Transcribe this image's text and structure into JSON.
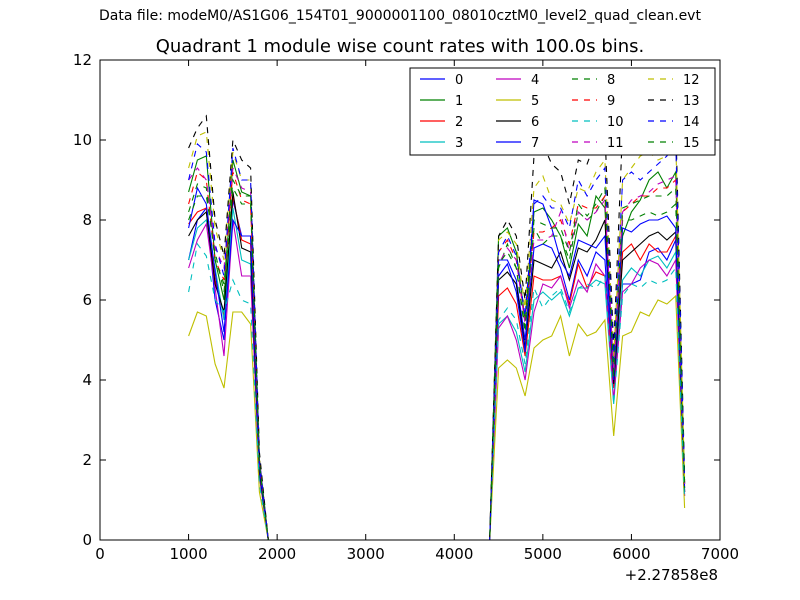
{
  "header": {
    "suptitle": "Data file: modeM0/AS1G06_154T01_9000001100_08010cztM0_level2_quad_clean.evt"
  },
  "chart_data": {
    "type": "line",
    "title": "Quadrant 1 module wise count rates with 100.0s bins.",
    "xlabel": "",
    "ylabel": "",
    "x_offset_label": "+2.27858e8",
    "xlim": [
      0,
      7000
    ],
    "ylim": [
      0,
      12
    ],
    "x_ticks": [
      0,
      1000,
      2000,
      3000,
      4000,
      5000,
      6000,
      7000
    ],
    "y_ticks": [
      0,
      2,
      4,
      6,
      8,
      10,
      12
    ],
    "grid": false,
    "legend_placement": "top-right",
    "legend_columns": 4,
    "x": [
      1000,
      1100,
      1200,
      1300,
      1400,
      1500,
      1600,
      1700,
      1800,
      1900,
      2000,
      2100,
      2200,
      2300,
      2400,
      2500,
      2600,
      2700,
      2800,
      2900,
      3000,
      3100,
      3200,
      3300,
      3400,
      3500,
      3600,
      3700,
      3800,
      3900,
      4000,
      4100,
      4200,
      4300,
      4400,
      4500,
      4600,
      4700,
      4800,
      4900,
      5000,
      5100,
      5200,
      5300,
      5400,
      5500,
      5600,
      5700,
      5800,
      5900,
      6000,
      6100,
      6200,
      6300,
      6400,
      6500,
      6600
    ],
    "series": [
      {
        "name": "0",
        "color": "#0000ff",
        "dash": "solid",
        "values": [
          7.0,
          8.0,
          8.3,
          6.0,
          5.0,
          8.5,
          7.6,
          7.6,
          1.8,
          0,
          0,
          0,
          0,
          0,
          0,
          0,
          0,
          0,
          0,
          0,
          0,
          0,
          0,
          0,
          0,
          0,
          0,
          0,
          0,
          0,
          0,
          0,
          0,
          0,
          0,
          7.0,
          7.0,
          6.5,
          5.0,
          7.3,
          7.4,
          7.3,
          6.8,
          6.0,
          7.0,
          6.6,
          7.2,
          7.0,
          3.8,
          6.4,
          6.4,
          6.5,
          7.2,
          7.3,
          7.0,
          7.5,
          1.2
        ]
      },
      {
        "name": "1",
        "color": "#008000",
        "dash": "solid",
        "values": [
          8.7,
          9.5,
          9.6,
          7.0,
          6.0,
          9.5,
          8.7,
          8.6,
          2.0,
          0,
          0,
          0,
          0,
          0,
          0,
          0,
          0,
          0,
          0,
          0,
          0,
          0,
          0,
          0,
          0,
          0,
          0,
          0,
          0,
          0,
          0,
          0,
          0,
          0,
          0,
          7.6,
          7.8,
          7.2,
          5.5,
          8.2,
          8.3,
          8.0,
          7.6,
          6.8,
          7.9,
          7.6,
          8.6,
          8.3,
          4.2,
          7.6,
          8.2,
          8.5,
          9.0,
          9.2,
          8.8,
          9.2,
          1.4
        ]
      },
      {
        "name": "2",
        "color": "#ff0000",
        "dash": "solid",
        "values": [
          7.9,
          8.2,
          8.3,
          6.5,
          5.6,
          8.6,
          7.5,
          7.4,
          1.8,
          0,
          0,
          0,
          0,
          0,
          0,
          0,
          0,
          0,
          0,
          0,
          0,
          0,
          0,
          0,
          0,
          0,
          0,
          0,
          0,
          0,
          0,
          0,
          0,
          0,
          0,
          6.1,
          6.3,
          5.9,
          4.6,
          6.6,
          6.5,
          6.5,
          6.6,
          5.9,
          6.9,
          6.3,
          6.7,
          6.6,
          3.8,
          7.2,
          7.4,
          7.0,
          7.4,
          7.2,
          7.2,
          7.6,
          1.2
        ]
      },
      {
        "name": "3",
        "color": "#00bfbf",
        "dash": "solid",
        "values": [
          7.0,
          7.8,
          8.0,
          6.8,
          5.5,
          8.3,
          7.0,
          6.9,
          1.6,
          0,
          0,
          0,
          0,
          0,
          0,
          0,
          0,
          0,
          0,
          0,
          0,
          0,
          0,
          0,
          0,
          0,
          0,
          0,
          0,
          0,
          0,
          0,
          0,
          0,
          0,
          5.4,
          5.6,
          5.2,
          4.2,
          6.0,
          6.2,
          6.0,
          6.2,
          5.6,
          6.3,
          6.3,
          6.5,
          6.4,
          3.4,
          6.5,
          6.8,
          6.6,
          7.0,
          7.1,
          6.8,
          7.2,
          1.1
        ]
      },
      {
        "name": "4",
        "color": "#bf00bf",
        "dash": "solid",
        "values": [
          6.8,
          7.5,
          7.9,
          6.3,
          4.6,
          8.0,
          6.6,
          6.6,
          1.6,
          0,
          0,
          0,
          0,
          0,
          0,
          0,
          0,
          0,
          0,
          0,
          0,
          0,
          0,
          0,
          0,
          0,
          0,
          0,
          0,
          0,
          0,
          0,
          0,
          0,
          0,
          5.3,
          5.6,
          5.0,
          4.0,
          5.7,
          6.4,
          6.3,
          6.6,
          5.8,
          6.5,
          6.2,
          6.9,
          6.6,
          3.5,
          6.2,
          6.4,
          6.8,
          7.0,
          6.9,
          6.6,
          7.0,
          1.1
        ]
      },
      {
        "name": "5",
        "color": "#bfbf00",
        "dash": "solid",
        "values": [
          5.1,
          5.7,
          5.6,
          4.4,
          3.8,
          5.7,
          5.7,
          5.4,
          1.2,
          0,
          0,
          0,
          0,
          0,
          0,
          0,
          0,
          0,
          0,
          0,
          0,
          0,
          0,
          0,
          0,
          0,
          0,
          0,
          0,
          0,
          0,
          0,
          0,
          0,
          0,
          4.3,
          4.5,
          4.3,
          3.6,
          4.8,
          5.0,
          5.1,
          5.6,
          4.6,
          5.4,
          5.1,
          5.2,
          5.5,
          2.6,
          5.1,
          5.2,
          5.7,
          5.6,
          6.0,
          5.9,
          6.1,
          0.8
        ]
      },
      {
        "name": "6",
        "color": "#000000",
        "dash": "solid",
        "values": [
          7.6,
          8.0,
          8.2,
          6.4,
          5.7,
          8.7,
          7.3,
          7.2,
          1.7,
          0,
          0,
          0,
          0,
          0,
          0,
          0,
          0,
          0,
          0,
          0,
          0,
          0,
          0,
          0,
          0,
          0,
          0,
          0,
          0,
          0,
          0,
          0,
          0,
          0,
          0,
          6.5,
          6.7,
          6.4,
          4.8,
          7.0,
          6.9,
          6.8,
          7.2,
          6.5,
          7.3,
          7.2,
          7.5,
          8.0,
          3.9,
          7.0,
          7.2,
          7.4,
          7.6,
          7.7,
          7.5,
          7.7,
          1.2
        ]
      },
      {
        "name": "7",
        "color": "#0000ff",
        "dash": "solid",
        "values": [
          7.8,
          8.8,
          8.4,
          6.7,
          5.2,
          8.0,
          7.6,
          7.6,
          1.8,
          0,
          0,
          0,
          0,
          0,
          0,
          0,
          0,
          0,
          0,
          0,
          0,
          0,
          0,
          0,
          0,
          0,
          0,
          0,
          0,
          0,
          0,
          0,
          0,
          0,
          0,
          6.6,
          6.9,
          6.2,
          4.7,
          8.5,
          8.4,
          7.8,
          7.0,
          6.6,
          7.5,
          7.4,
          7.3,
          7.6,
          4.0,
          7.8,
          7.7,
          7.9,
          8.0,
          8.0,
          8.1,
          7.8,
          1.3
        ]
      },
      {
        "name": "8",
        "color": "#008000",
        "dash": "dashed",
        "values": [
          8.0,
          8.6,
          8.6,
          7.2,
          6.2,
          8.8,
          8.4,
          8.4,
          1.9,
          0,
          0,
          0,
          0,
          0,
          0,
          0,
          0,
          0,
          0,
          0,
          0,
          0,
          0,
          0,
          0,
          0,
          0,
          0,
          0,
          0,
          0,
          0,
          0,
          0,
          0,
          6.8,
          7.4,
          6.8,
          5.2,
          7.8,
          7.4,
          7.6,
          7.6,
          7.0,
          8.2,
          8.0,
          8.2,
          8.6,
          4.1,
          8.0,
          8.0,
          8.1,
          8.2,
          8.1,
          8.2,
          8.4,
          1.3
        ]
      },
      {
        "name": "9",
        "color": "#ff0000",
        "dash": "dashed",
        "values": [
          8.4,
          9.2,
          9.0,
          7.0,
          6.5,
          9.2,
          8.5,
          8.4,
          2.0,
          0,
          0,
          0,
          0,
          0,
          0,
          0,
          0,
          0,
          0,
          0,
          0,
          0,
          0,
          0,
          0,
          0,
          0,
          0,
          0,
          0,
          0,
          0,
          0,
          0,
          0,
          7.2,
          7.5,
          7.0,
          5.5,
          7.7,
          7.7,
          7.8,
          8.0,
          7.4,
          8.4,
          8.3,
          8.3,
          8.6,
          4.3,
          8.2,
          8.4,
          8.6,
          8.6,
          8.8,
          8.8,
          9.0,
          1.4
        ]
      },
      {
        "name": "10",
        "color": "#00bfbf",
        "dash": "dashed",
        "values": [
          6.2,
          7.4,
          7.1,
          6.0,
          5.7,
          6.5,
          6.0,
          5.9,
          1.4,
          0,
          0,
          0,
          0,
          0,
          0,
          0,
          0,
          0,
          0,
          0,
          0,
          0,
          0,
          0,
          0,
          0,
          0,
          0,
          0,
          0,
          0,
          0,
          0,
          0,
          0,
          5.5,
          5.8,
          5.5,
          4.4,
          6.3,
          5.8,
          6.1,
          6.3,
          5.7,
          6.3,
          6.4,
          6.3,
          6.6,
          3.4,
          6.1,
          6.4,
          6.3,
          6.5,
          6.4,
          6.5,
          6.8,
          1.0
        ]
      },
      {
        "name": "11",
        "color": "#bf00bf",
        "dash": "dashed",
        "values": [
          9.0,
          9.3,
          9.0,
          7.3,
          6.8,
          9.3,
          8.8,
          8.7,
          2.0,
          0,
          0,
          0,
          0,
          0,
          0,
          0,
          0,
          0,
          0,
          0,
          0,
          0,
          0,
          0,
          0,
          0,
          0,
          0,
          0,
          0,
          0,
          0,
          0,
          0,
          0,
          6.9,
          7.3,
          7.0,
          5.4,
          7.5,
          7.5,
          7.6,
          8.2,
          7.2,
          8.2,
          8.0,
          8.2,
          8.5,
          4.2,
          8.2,
          8.5,
          8.6,
          8.7,
          8.9,
          9.0,
          9.1,
          1.4
        ]
      },
      {
        "name": "12",
        "color": "#bfbf00",
        "dash": "dashed",
        "values": [
          9.3,
          10.1,
          10.2,
          7.8,
          7.0,
          9.7,
          9.0,
          9.0,
          2.1,
          0,
          0,
          0,
          0,
          0,
          0,
          0,
          0,
          0,
          0,
          0,
          0,
          0,
          0,
          0,
          0,
          0,
          0,
          0,
          0,
          0,
          0,
          0,
          0,
          0,
          0,
          7.5,
          7.7,
          7.4,
          5.8,
          8.8,
          9.1,
          8.5,
          8.4,
          7.9,
          8.8,
          8.7,
          9.2,
          9.5,
          4.6,
          9.0,
          9.3,
          9.6,
          9.7,
          9.5,
          9.6,
          10.0,
          1.5
        ]
      },
      {
        "name": "13",
        "color": "#000000",
        "dash": "dashed",
        "values": [
          9.8,
          10.3,
          10.6,
          8.0,
          7.1,
          10.0,
          9.5,
          9.3,
          2.2,
          0,
          0,
          0,
          0,
          0,
          0,
          0,
          0,
          0,
          0,
          0,
          0,
          0,
          0,
          0,
          0,
          0,
          0,
          0,
          0,
          0,
          0,
          0,
          0,
          0,
          0,
          7.6,
          8.0,
          7.6,
          6.0,
          9.6,
          9.9,
          9.4,
          9.2,
          8.4,
          9.5,
          9.4,
          10.0,
          10.2,
          4.8,
          10.3,
          10.0,
          10.2,
          10.3,
          10.2,
          10.4,
          10.5,
          1.6
        ]
      },
      {
        "name": "14",
        "color": "#0000ff",
        "dash": "dashed",
        "values": [
          9.0,
          9.9,
          9.7,
          7.4,
          6.6,
          9.8,
          9.0,
          9.0,
          2.0,
          0,
          0,
          0,
          0,
          0,
          0,
          0,
          0,
          0,
          0,
          0,
          0,
          0,
          0,
          0,
          0,
          0,
          0,
          0,
          0,
          0,
          0,
          0,
          0,
          0,
          0,
          7.2,
          7.6,
          7.1,
          5.6,
          8.4,
          8.6,
          8.3,
          8.3,
          7.8,
          9.0,
          8.6,
          9.0,
          9.3,
          4.5,
          9.0,
          9.2,
          9.0,
          9.2,
          9.4,
          9.6,
          10.0,
          1.5
        ]
      },
      {
        "name": "15",
        "color": "#008000",
        "dash": "dashed",
        "values": [
          8.2,
          8.9,
          8.8,
          7.0,
          6.4,
          9.0,
          8.6,
          8.6,
          1.9,
          0,
          0,
          0,
          0,
          0,
          0,
          0,
          0,
          0,
          0,
          0,
          0,
          0,
          0,
          0,
          0,
          0,
          0,
          0,
          0,
          0,
          0,
          0,
          0,
          0,
          0,
          6.9,
          7.2,
          6.8,
          5.3,
          8.0,
          7.9,
          7.8,
          7.8,
          7.2,
          8.4,
          8.1,
          8.4,
          8.8,
          4.2,
          8.3,
          8.4,
          8.5,
          8.6,
          8.6,
          8.6,
          8.8,
          1.4
        ]
      }
    ]
  }
}
